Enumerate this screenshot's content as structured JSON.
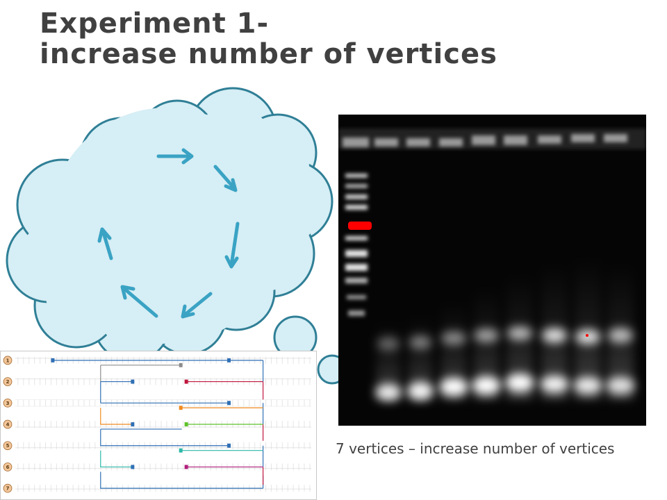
{
  "slide": {
    "title_line1": "Experiment 1-",
    "title_line2": "increase number of vertices",
    "caption": "7 vertices – increase number of vertices"
  },
  "colors": {
    "title": "#404040",
    "cloud_fill": "#d6eef5",
    "cloud_stroke": "#2f7f96",
    "arrow": "#3aa3c4",
    "gel_background": "#050505",
    "marker_band": "#ff0000"
  },
  "diagram": {
    "track_labels": [
      "1",
      "2",
      "3",
      "4",
      "5",
      "6",
      "7"
    ],
    "path_colors": [
      "#2f6fb5",
      "#8c8c8c",
      "#c0143c",
      "#f08a1e",
      "#5ec22a",
      "#2ab8a8",
      "#b01e7a"
    ]
  }
}
